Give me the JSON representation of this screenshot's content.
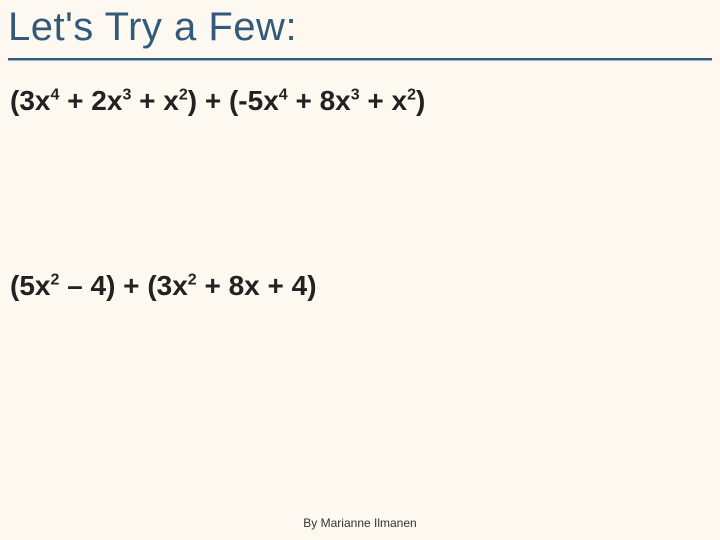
{
  "slide": {
    "title": "Let's Try a Few:",
    "background_color": "#fdf9f0",
    "title_color": "#335a7a",
    "title_fontsize": 40,
    "rule_color_top": "#335a7a",
    "rule_color_bottom": "#9fb3c4",
    "expressions": [
      {
        "display": "(3x⁴ + 2x³ + x²) + (-5x⁴ + 8x³ + x²)",
        "terms_left": [
          {
            "coef": "3",
            "var": "x",
            "exp": "4"
          },
          {
            "coef": "2",
            "var": "x",
            "exp": "3"
          },
          {
            "coef": "",
            "var": "x",
            "exp": "2"
          }
        ],
        "op": "+",
        "terms_right": [
          {
            "coef": "-5",
            "var": "x",
            "exp": "4"
          },
          {
            "coef": "8",
            "var": "x",
            "exp": "3"
          },
          {
            "coef": "",
            "var": "x",
            "exp": "2"
          }
        ],
        "fontsize": 28,
        "color": "#222222"
      },
      {
        "display": "(5x² – 4) + (3x² + 8x + 4)",
        "terms_left": [
          {
            "coef": "5",
            "var": "x",
            "exp": "2"
          },
          {
            "coef": "-4",
            "var": "",
            "exp": ""
          }
        ],
        "op": "+",
        "terms_right": [
          {
            "coef": "3",
            "var": "x",
            "exp": "2"
          },
          {
            "coef": "8",
            "var": "x",
            "exp": ""
          },
          {
            "coef": "4",
            "var": "",
            "exp": ""
          }
        ],
        "fontsize": 28,
        "color": "#222222"
      }
    ],
    "footer": "By Marianne Ilmanen",
    "footer_fontsize": 12,
    "footer_color": "#333333"
  }
}
